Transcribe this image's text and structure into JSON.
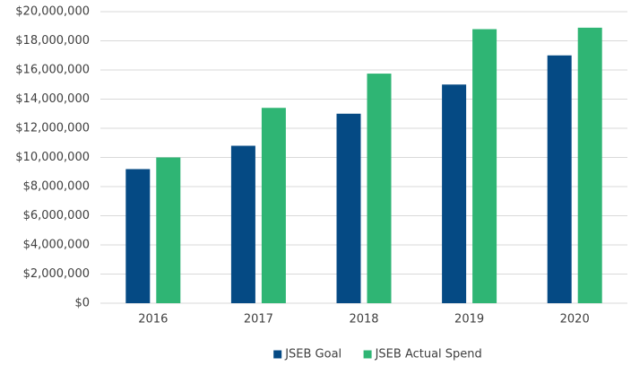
{
  "chart_data": {
    "type": "bar",
    "categories": [
      "2016",
      "2017",
      "2018",
      "2019",
      "2020"
    ],
    "series": [
      {
        "name": "JSEB Goal",
        "color": "#054a84",
        "values": [
          9200000,
          10800000,
          13000000,
          15000000,
          17000000
        ]
      },
      {
        "name": "JSEB Actual Spend",
        "color": "#2fb574",
        "values": [
          10000000,
          13400000,
          15750000,
          18800000,
          18900000
        ]
      }
    ],
    "ylim": [
      0,
      20000000
    ],
    "yticks": [
      {
        "value": 0,
        "label": "$0"
      },
      {
        "value": 2000000,
        "label": "$2,000,000"
      },
      {
        "value": 4000000,
        "label": "$4,000,000"
      },
      {
        "value": 6000000,
        "label": "$6,000,000"
      },
      {
        "value": 8000000,
        "label": "$8,000,000"
      },
      {
        "value": 10000000,
        "label": "$10,000,000"
      },
      {
        "value": 12000000,
        "label": "$12,000,000"
      },
      {
        "value": 14000000,
        "label": "$14,000,000"
      },
      {
        "value": 16000000,
        "label": "$16,000,000"
      },
      {
        "value": 18000000,
        "label": "$18,000,000"
      },
      {
        "value": 20000000,
        "label": "$20,000,000"
      }
    ],
    "grid": true,
    "legend": "bottom"
  }
}
